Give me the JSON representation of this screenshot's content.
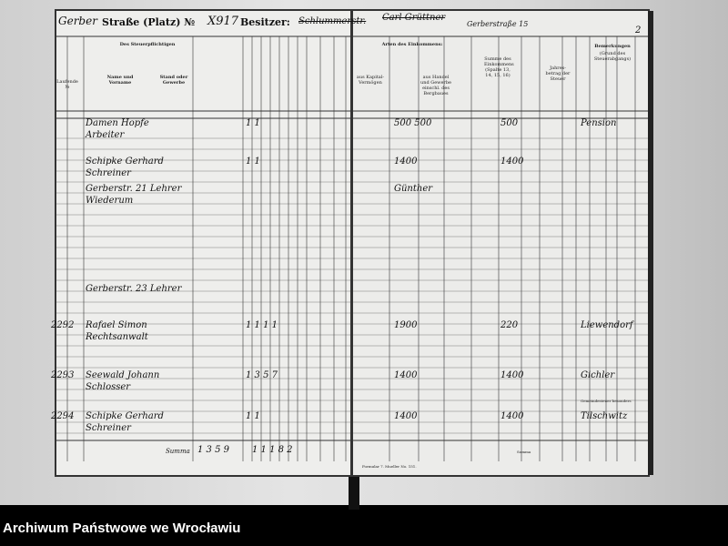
{
  "header": {
    "street_handwritten": "Gerber",
    "street_label": "Straße (Platz) №",
    "number_handwritten": "X917",
    "owner_label": "Besitzer:",
    "owner_handwritten": "Schlummerstr.",
    "owner_right_handwritten": "Carl Grüttner",
    "owner_right_address": "Gerberstraße 15",
    "page_number": "2"
  },
  "columns_left": {
    "lfd": "Laufende №",
    "taxpayer": "Des Steuerpflichtigen",
    "name": "Name und Vorname",
    "status": "Stand oder Gewerbe"
  },
  "columns_right": {
    "income_types": "Arten des Einkommens:",
    "capital": "aus Kapital-Vermögen",
    "trade": "aus Handel und Gewerbe einschl. des Bergbaues",
    "sum": "Summe des Einkommens (Spalte 13, 14, 15, 16)",
    "tax_amount": "Jahres-betrag der Steuer",
    "remarks": "Bemerkungen",
    "remarks_sub": "(Grund des Steuerabgangs)"
  },
  "rows": [
    {
      "lfd": "",
      "name": "Damen Hopfe",
      "status": "Arbeiter",
      "values": "1 1",
      "income": "500 500",
      "sum": "500",
      "remarks": "Pension"
    },
    {
      "lfd": "",
      "name": "Schipke Gerhard",
      "status": "Schreiner",
      "values": "1 1",
      "income": "1400",
      "sum": "1400",
      "remarks": ""
    },
    {
      "lfd": "",
      "name": "Gerberstr. 21 Lehrer",
      "status": "Wiederum",
      "values": "",
      "income": "Günther",
      "sum": "",
      "remarks": ""
    },
    {
      "lfd": "",
      "name": "Gerberstr. 23 Lehrer",
      "status": "",
      "values": "",
      "income": "",
      "sum": "",
      "remarks": ""
    },
    {
      "lfd": "2292",
      "name": "Rafael Simon",
      "status": "Rechtsanwalt",
      "values": "1 1 1 1",
      "income": "1900",
      "sum": "220",
      "remarks": "Liewendorf"
    },
    {
      "lfd": "2293",
      "name": "Seewald Johann",
      "status": "Schlosser",
      "values": "1 3 5 7",
      "income": "1400",
      "sum": "1400",
      "remarks": "Gichler"
    },
    {
      "lfd": "2294",
      "name": "Schipke Gerhard",
      "status": "Schreiner",
      "values": "1 1",
      "income": "1400",
      "sum": "1400",
      "remarks": "Tilschwitz"
    }
  ],
  "totals": {
    "label": "Summa",
    "values": "1 3 5 9",
    "values2": "1 1 1 8 2",
    "right_label": "Summa"
  },
  "form_note": "Formular 7. Mueller No. 151.",
  "remarks_note": "Gemeindesteuer besonders",
  "footer": {
    "archive": "Archiwum Państwowe we Wrocławiu"
  }
}
